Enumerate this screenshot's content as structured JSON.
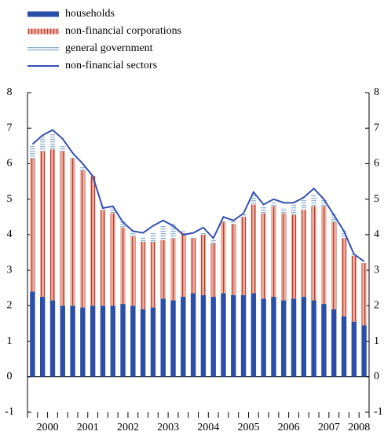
{
  "chart_data": {
    "type": "stacked-bar-line",
    "categories": [
      "2000",
      null,
      null,
      null,
      "2001",
      null,
      null,
      null,
      "2002",
      null,
      null,
      null,
      "2003",
      null,
      null,
      null,
      "2004",
      null,
      null,
      null,
      "2005",
      null,
      null,
      null,
      "2006",
      null,
      null,
      null,
      "2007",
      null,
      null,
      null,
      "2008",
      null
    ],
    "series": [
      {
        "name": "households",
        "color": "#2b4fa8",
        "kind": "bar",
        "values": [
          2.4,
          2.25,
          2.15,
          2.0,
          2.0,
          1.95,
          2.0,
          2.0,
          2.0,
          2.05,
          2.0,
          1.9,
          1.95,
          2.2,
          2.15,
          2.25,
          2.35,
          2.3,
          2.25,
          2.35,
          2.3,
          2.3,
          2.35,
          2.2,
          2.25,
          2.15,
          2.2,
          2.25,
          2.15,
          2.05,
          1.9,
          1.7,
          1.55,
          1.45
        ]
      },
      {
        "name": "non-financial corporations",
        "color": "#e8b0a0",
        "kind": "bar",
        "values": [
          3.75,
          4.1,
          4.25,
          4.35,
          4.15,
          3.85,
          3.65,
          2.7,
          2.6,
          2.15,
          1.95,
          1.9,
          1.85,
          1.65,
          1.75,
          1.8,
          1.55,
          1.7,
          1.5,
          2.0,
          2.0,
          2.2,
          2.5,
          2.4,
          2.55,
          2.45,
          2.35,
          2.45,
          2.65,
          2.75,
          2.45,
          2.2,
          1.85,
          1.75
        ]
      },
      {
        "name": "general government",
        "color": "#b8cde0",
        "kind": "bar",
        "values": [
          0.35,
          0.45,
          0.45,
          0.15,
          0.05,
          0.1,
          0.0,
          0.05,
          0.15,
          0.2,
          0.15,
          0.15,
          0.25,
          0.4,
          0.4,
          0.05,
          0.05,
          0.05,
          0.1,
          0.05,
          0.1,
          0.1,
          0.25,
          0.2,
          0.1,
          0.15,
          0.3,
          0.3,
          0.35,
          0.2,
          0.25,
          0.2,
          0.05,
          0.0
        ]
      },
      {
        "name": "non-financial sectors",
        "color": "#3350b0",
        "kind": "line",
        "values": [
          6.55,
          6.8,
          6.95,
          6.7,
          6.3,
          6.0,
          5.65,
          4.75,
          4.8,
          4.35,
          4.1,
          4.05,
          4.25,
          4.4,
          4.25,
          4.0,
          4.05,
          4.2,
          3.9,
          4.5,
          4.4,
          4.6,
          5.2,
          4.85,
          5.0,
          4.9,
          4.9,
          5.05,
          5.3,
          5.0,
          4.55,
          4.1,
          3.45,
          3.25
        ]
      }
    ],
    "ylim": [
      -1,
      8
    ],
    "yticks": [
      -1,
      0,
      1,
      2,
      3,
      4,
      5,
      6,
      7,
      8
    ],
    "right_axis": true
  }
}
